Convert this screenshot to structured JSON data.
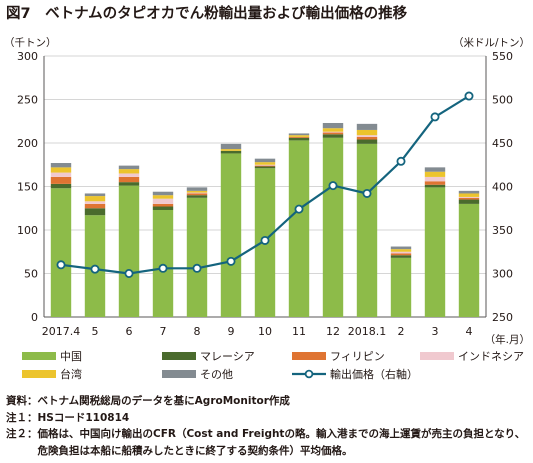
{
  "chart_data": {
    "type": "bar",
    "title": "図7　ベトナムのタピオカでん粉輸出量および輸出価格の推移",
    "y_left_label": "（千トン）",
    "y_right_label": "（米ドル/トン）",
    "x_unit_label": "（年.月）",
    "ylim_left": [
      0,
      300
    ],
    "yticks_left": [
      0,
      50,
      100,
      150,
      200,
      250,
      300
    ],
    "ylim_right": [
      250,
      550
    ],
    "yticks_right": [
      250,
      300,
      350,
      400,
      450,
      500,
      550
    ],
    "categories": [
      "2017.4",
      "5",
      "6",
      "7",
      "8",
      "9",
      "10",
      "11",
      "12",
      "2018.1",
      "2",
      "3",
      "4"
    ],
    "stack_series": [
      {
        "name": "中国",
        "color": "#8dbb49",
        "values": [
          148,
          117,
          151,
          123,
          137,
          188,
          171,
          203,
          206,
          199,
          68,
          149,
          130
        ]
      },
      {
        "name": "マレーシア",
        "color": "#4a6b2d",
        "values": [
          5,
          8,
          4,
          4,
          3,
          3,
          2,
          3,
          4,
          5,
          3,
          3,
          5
        ]
      },
      {
        "name": "フィリピン",
        "color": "#df7432",
        "values": [
          8,
          5,
          6,
          3,
          2,
          0,
          1,
          1,
          2,
          3,
          2,
          4,
          2
        ]
      },
      {
        "name": "インドネシア",
        "color": "#f0c9cf",
        "values": [
          5,
          3,
          4,
          6,
          1,
          0,
          1,
          0,
          1,
          2,
          2,
          5,
          1
        ]
      },
      {
        "name": "台湾",
        "color": "#ecc42d",
        "values": [
          6,
          6,
          5,
          4,
          2,
          2,
          3,
          2,
          4,
          6,
          3,
          6,
          4
        ]
      },
      {
        "name": "その他",
        "color": "#838b91",
        "values": [
          5,
          3,
          4,
          4,
          4,
          6,
          4,
          2,
          6,
          7,
          3,
          5,
          3
        ]
      }
    ],
    "line_series": {
      "name": "輸出価格（右軸）",
      "color": "#14647e",
      "axis": "right",
      "values": [
        310,
        305,
        300,
        306,
        306,
        314,
        338,
        374,
        401,
        392,
        429,
        480,
        504
      ]
    },
    "legend_position": "bottom",
    "grid": "horizontal"
  },
  "notes": [
    {
      "label": "資料：",
      "text": "ベトナム関税総局のデータを基にAgroMonitor作成"
    },
    {
      "label": "注１：",
      "text": "HSコード110814"
    },
    {
      "label": "注２：",
      "text": "価格は、中国向け輸出のCFR（Cost and Freightの略。輸入港までの海上運賃が売主の負担となり、危険負担は本船に船積みしたときに終了する契約条件）平均価格。"
    }
  ]
}
